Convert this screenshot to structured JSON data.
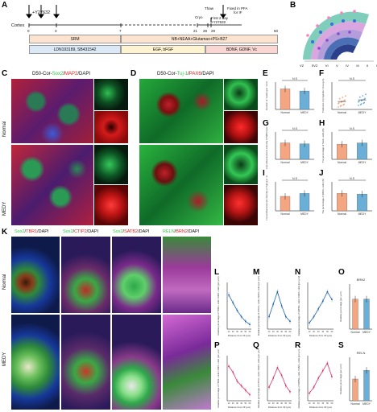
{
  "panels": {
    "A": "A",
    "B": "B",
    "C": "C",
    "D": "D",
    "E": "E",
    "F": "F",
    "G": "G",
    "H": "H",
    "I": "I",
    "J": "J",
    "K": "K",
    "L": "L",
    "M": "M",
    "N": "N",
    "O": "O",
    "P": "P",
    "Q": "Q",
    "R": "R",
    "S": "S"
  },
  "timeline": {
    "cortex": "Cortex",
    "y27632_top": "+Y27632",
    "ticks": [
      "0",
      "3",
      "7",
      "21",
      "28",
      "29",
      "50"
    ],
    "cryo": "Cryo",
    "thaw": "Thaw",
    "first2day": "First 2 day",
    "y27632_day": "+Y27632",
    "fixed": "Fixed in PFA",
    "for_if": "for IF",
    "media": {
      "srm": "SRM",
      "nb": "NB+NEAA+Glutamax+PS+B27"
    },
    "factors": {
      "ldn": "LDN193189, SB431542",
      "egf": "EGF, bFGF",
      "bdnf": "BDNF, GDNF, Vc"
    }
  },
  "layers": [
    "VZ",
    "SVZ",
    "VI",
    "V",
    "IV",
    "III",
    "II",
    "I"
  ],
  "C": {
    "title_a": "D50-Cor-",
    "title_sox2": "Sox2",
    "title_sep": "/",
    "title_map2": "MAP2",
    "title_dapi": "/DAPI",
    "normal": "Normal",
    "medy": "MEDY"
  },
  "D": {
    "title_a": "D50-Cor-",
    "title_tuj1": "Tuj-1",
    "title_sep": "/",
    "title_pax6": "PAX6",
    "title_dapi": "/DAPI"
  },
  "K": {
    "t1": [
      "Sox2",
      "/",
      "TBR1",
      "/DAPI"
    ],
    "t2": [
      "Sox2",
      "/",
      "CTIP2",
      "/DAPI"
    ],
    "t3": [
      "Sox2",
      "/",
      "SATB2",
      "/DAPI"
    ],
    "t4": [
      "RELN",
      "/",
      "BRN2",
      "/DAPI"
    ],
    "normal": "Normal",
    "medy": "MEDY"
  },
  "colors": {
    "normal": "#f4a582",
    "medy": "#6baed6",
    "normal_line": "#2166ac",
    "medy_line": "#d6336c",
    "sox2": "#2ecc40",
    "map2": "#e41a1c",
    "dapi": "#3a5bd9"
  },
  "bar_charts": {
    "E": {
      "ylabel": "Number of rosette (per mm²)",
      "sig": "N.S",
      "categories": [
        "Normal",
        "MEDY"
      ]
    },
    "G": {
      "ylabel": "Immunofluorescence intensity of MAP2 (per mm²)",
      "sig": "N.S",
      "categories": [
        "Normal",
        "MEDY"
      ]
    },
    "I": {
      "ylabel": "Immunofluorescence intensity of Tuj1 (per mm²)",
      "sig": "N.S",
      "categories": [
        "Normal",
        "MEDY"
      ]
    },
    "H": {
      "ylabel": "The percentage of Sox2+ cells (%)",
      "sig": "N.S",
      "categories": [
        "Normal",
        "MEDY"
      ]
    },
    "J": {
      "ylabel": "The percentage of PAX6+ cells (%)",
      "sig": "N.S",
      "categories": [
        "Normal",
        "MEDY"
      ]
    },
    "F": {
      "ylabel": "Thickness of progenitor zone (μm)",
      "sig": "N.S",
      "categories": [
        "Normal",
        "MEDY"
      ]
    },
    "O": {
      "title": "BRN2",
      "ylabel": "Relative percentage (per µm²)",
      "categories": [
        "Normal",
        "MEDY"
      ]
    },
    "S": {
      "title": "RELN",
      "ylabel": "Relative percentage (per µm²)",
      "categories": [
        "Normal",
        "MEDY"
      ]
    }
  },
  "line_charts": {
    "L": {
      "ylabel": "Relative percentage of TBR1+ cells / DAPI+ cells (per µm²)",
      "xlabel": "Distance from VZ (μm)"
    },
    "M": {
      "ylabel": "Relative percentage of CTIP2+ cells / DAPI+ cells (per µm²)",
      "xlabel": "Distance from VZ (μm)"
    },
    "N": {
      "ylabel": "Relative percentage of SATB2+ cells / DAPI+ cells (per µm²)",
      "xlabel": "Distance from VZ (μm)"
    },
    "P": {
      "ylabel": "Relative percentage of TBR1+ cells / DAPI+ cells (per µm²)",
      "xlabel": "Distance from VZ (μm)"
    },
    "Q": {
      "ylabel": "Relative percentage of CTIP2+ cells / DAPI+ cells (per µm²)",
      "xlabel": "Distance from VZ (μm)"
    },
    "R": {
      "ylabel": "Relative percentage of SATB2+ cells / DAPI+ cells (per µm²)",
      "xlabel": "Distance from VZ (μm)"
    }
  },
  "chart_data": [
    {
      "id": "E",
      "type": "bar",
      "categories": [
        "Normal",
        "MEDY"
      ],
      "values": [
        6.0,
        5.4
      ],
      "ylim": [
        0,
        8
      ]
    },
    {
      "id": "F",
      "type": "scatter",
      "categories": [
        "Normal",
        "MEDY"
      ],
      "values": [
        35,
        42
      ],
      "ylim": [
        0,
        120
      ]
    },
    {
      "id": "G",
      "type": "bar",
      "categories": [
        "Normal",
        "MEDY"
      ],
      "values": [
        0.9,
        0.85
      ],
      "ylim": [
        0,
        1.5
      ]
    },
    {
      "id": "H",
      "type": "bar",
      "categories": [
        "Normal",
        "MEDY"
      ],
      "values": [
        55,
        60
      ],
      "ylim": [
        0,
        100
      ]
    },
    {
      "id": "I",
      "type": "bar",
      "categories": [
        "Normal",
        "MEDY"
      ],
      "values": [
        0.5,
        0.6
      ],
      "ylim": [
        0,
        1.0
      ]
    },
    {
      "id": "J",
      "type": "bar",
      "categories": [
        "Normal",
        "MEDY"
      ],
      "values": [
        60,
        58
      ],
      "ylim": [
        0,
        100
      ]
    },
    {
      "id": "L",
      "type": "line",
      "x": [
        10,
        20,
        30,
        40,
        50,
        60
      ],
      "values": [
        2.2,
        1.7,
        1.2,
        0.8,
        0.5,
        0.3
      ],
      "ylim": [
        0,
        3
      ]
    },
    {
      "id": "M",
      "type": "line",
      "x": [
        10,
        20,
        30,
        40,
        50,
        60
      ],
      "values": [
        0.8,
        1.6,
        2.4,
        1.5,
        0.8,
        0.5
      ],
      "ylim": [
        0,
        3
      ]
    },
    {
      "id": "N",
      "type": "line",
      "x": [
        10,
        20,
        30,
        40,
        50,
        60
      ],
      "values": [
        0.4,
        0.8,
        1.3,
        1.8,
        2.4,
        1.9
      ],
      "ylim": [
        0,
        3
      ]
    },
    {
      "id": "O",
      "type": "bar",
      "categories": [
        "Normal",
        "MEDY"
      ],
      "values": [
        1.0,
        1.0
      ],
      "ylim": [
        0,
        1.5
      ]
    },
    {
      "id": "P",
      "type": "line",
      "x": [
        10,
        20,
        30,
        40,
        50,
        60
      ],
      "values": [
        2.3,
        1.9,
        1.3,
        1.0,
        0.7,
        0.4
      ],
      "ylim": [
        0,
        3
      ]
    },
    {
      "id": "Q",
      "type": "line",
      "x": [
        10,
        20,
        30,
        40,
        50,
        60
      ],
      "values": [
        0.9,
        1.5,
        2.2,
        1.7,
        1.0,
        0.6
      ],
      "ylim": [
        0,
        3
      ]
    },
    {
      "id": "R",
      "type": "line",
      "x": [
        10,
        20,
        30,
        40,
        50,
        60
      ],
      "values": [
        0.5,
        0.9,
        1.5,
        2.0,
        2.5,
        1.6
      ],
      "ylim": [
        0,
        3
      ]
    },
    {
      "id": "S",
      "type": "bar",
      "categories": [
        "Normal",
        "MEDY"
      ],
      "values": [
        1.0,
        1.4
      ],
      "ylim": [
        0,
        2
      ]
    }
  ]
}
